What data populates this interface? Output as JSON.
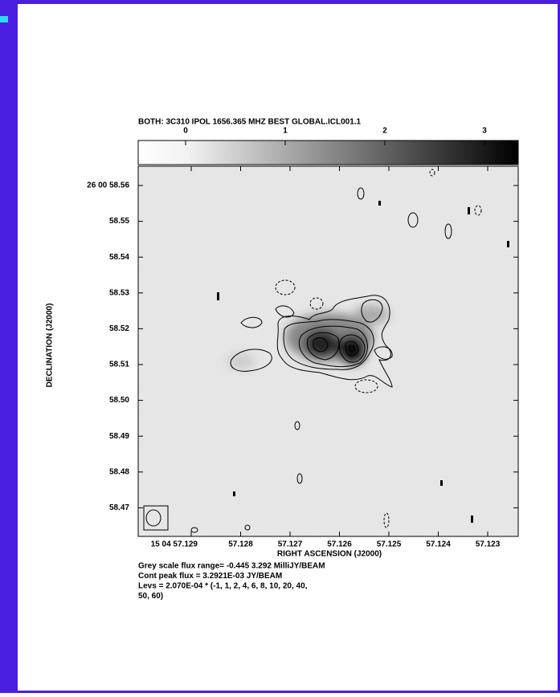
{
  "header": {
    "title": "BOTH: 3C310  IPOL  1656.365 MHZ  BEST GLOBAL.ICL001.1"
  },
  "colorbar": {
    "ticks": [
      "0",
      "1",
      "2",
      "3"
    ]
  },
  "axes": {
    "x_label": "RIGHT ASCENSION (J2000)",
    "y_label": "DECLINATION (J2000)",
    "x_ticks": [
      "15 04 57.129",
      "57.128",
      "57.127",
      "57.126",
      "57.125",
      "57.124",
      "57.123"
    ],
    "y_ticks": [
      "26 00 58.56",
      "58.55",
      "58.54",
      "58.53",
      "58.52",
      "58.51",
      "58.50",
      "58.49",
      "58.48",
      "58.47"
    ]
  },
  "notes": [
    "Grey scale flux range= -0.445 3.292 MilliJY/BEAM",
    "Cont peak flux =  3.2921E-03 JY/BEAM",
    "Levs = 2.070E-04 * (-1, 1, 2, 4, 6, 8, 10, 20, 40,",
    "50, 60)"
  ]
}
